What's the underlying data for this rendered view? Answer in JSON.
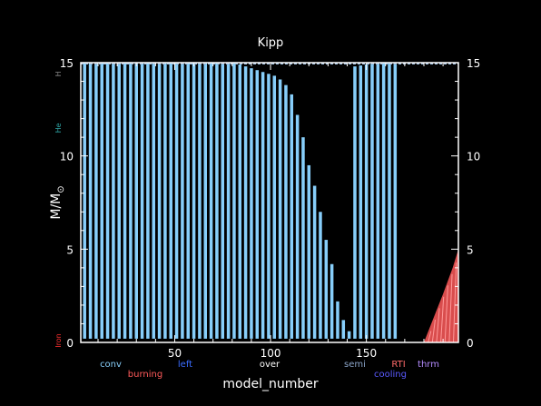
{
  "chart_data": {
    "type": "bar",
    "title": "Kipp",
    "xlabel": "model_number",
    "ylabel": "M/M",
    "ylabel_sub": "⊙",
    "xlim": [
      1,
      198
    ],
    "ylim": [
      0,
      15
    ],
    "xticks": [
      50,
      100,
      150
    ],
    "yticks": [
      0,
      5,
      10,
      15
    ],
    "grid": false,
    "legend": [
      {
        "label": "conv",
        "color": "#87cefa",
        "row": 1
      },
      {
        "label": "burning",
        "color": "#ff5a5a",
        "row": 2
      },
      {
        "label": "left",
        "color": "#3a6cff",
        "row": 1
      },
      {
        "label": "over",
        "color": "#ffffff",
        "row": 1
      },
      {
        "label": "semi",
        "color": "#8aa4c8",
        "row": 1
      },
      {
        "label": "cooling",
        "color": "#5a5aff",
        "row": 2
      },
      {
        "label": "RTI",
        "color": "#ff6a6a",
        "row": 1
      },
      {
        "label": "thrm",
        "color": "#b48cff",
        "row": 1
      }
    ],
    "side_labels": [
      {
        "label": "He",
        "color": "#2fa7a7",
        "y": 11.5
      },
      {
        "label": "Iron",
        "color": "#ff3030",
        "y": 0
      },
      {
        "label": "H",
        "color": "#888888",
        "y": 14.5
      }
    ],
    "conv_series": {
      "name": "conv",
      "color": "#87cefa",
      "bottom": 0.2,
      "x": [
        3,
        6,
        9,
        12,
        15,
        18,
        21,
        24,
        27,
        30,
        33,
        36,
        39,
        42,
        45,
        48,
        51,
        54,
        57,
        60,
        63,
        66,
        69,
        72,
        75,
        78,
        81,
        84,
        87,
        90,
        93,
        96,
        99,
        102,
        105,
        108,
        111,
        114,
        117,
        120,
        123,
        126,
        129,
        132,
        135,
        138,
        141,
        144,
        147,
        150,
        153,
        156,
        159,
        162,
        165
      ],
      "top": [
        15,
        15,
        15,
        15,
        15,
        15,
        15,
        15,
        15,
        15,
        15,
        15,
        15,
        15,
        15,
        15,
        15,
        15,
        15,
        15,
        15,
        15,
        15,
        15,
        15,
        15,
        15,
        14.9,
        14.8,
        14.7,
        14.6,
        14.5,
        14.4,
        14.3,
        14.1,
        13.8,
        13.3,
        12.2,
        11.0,
        9.5,
        8.4,
        7.0,
        5.5,
        4.2,
        2.2,
        1.2,
        0.6,
        14.8,
        14.85,
        14.9,
        14.95,
        15,
        15,
        15,
        15
      ]
    },
    "burning_region": {
      "name": "burning",
      "color": "#ff5a5a",
      "x": [
        180,
        185,
        190,
        195,
        198
      ],
      "top": [
        0.0,
        1.3,
        2.6,
        4.0,
        5.0
      ]
    }
  }
}
